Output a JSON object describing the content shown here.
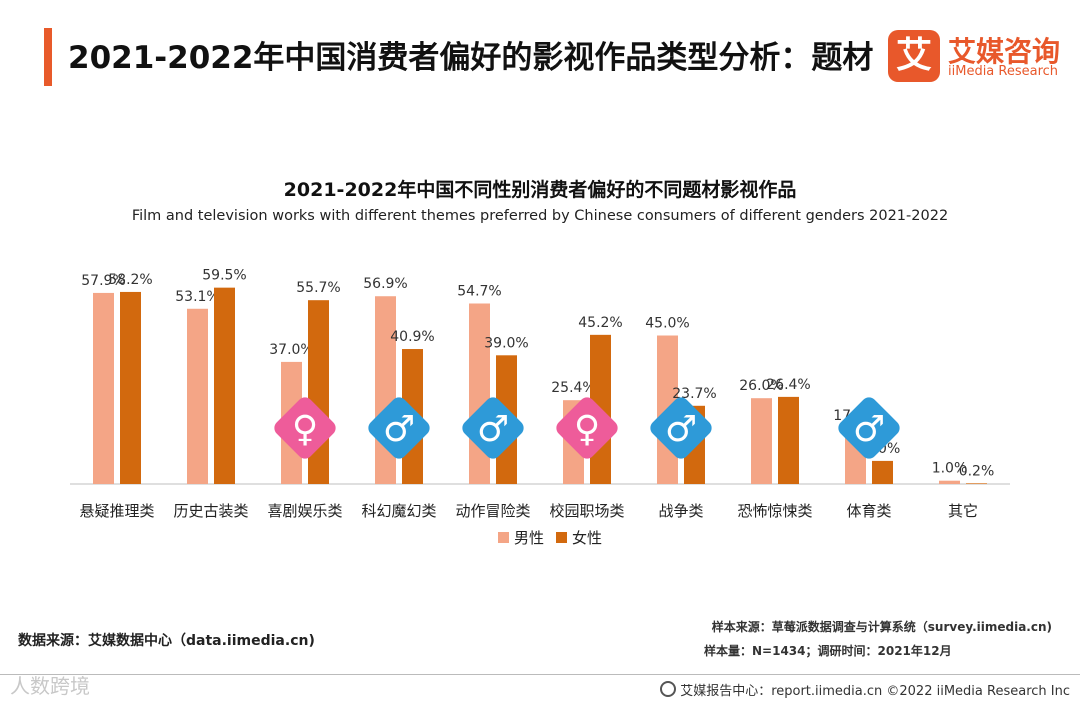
{
  "header": {
    "title": "2021-2022年中国消费者偏好的影视作品类型分析：题材",
    "accent_color": "#e85a2a"
  },
  "logo": {
    "mark": "艾",
    "name_cn": "艾媒咨询",
    "name_en": "iiMedia Research",
    "color": "#e8582b"
  },
  "chart_data": {
    "type": "bar",
    "title": "2021-2022年中国不同性别消费者偏好的不同题材影视作品",
    "subtitle": "Film and television works with different themes preferred by Chinese consumers of different genders 2021-2022",
    "categories": [
      "悬疑推理类",
      "历史古装类",
      "喜剧娱乐类",
      "科幻魔幻类",
      "动作冒险类",
      "校园职场类",
      "战争类",
      "恐怖惊悚类",
      "体育类",
      "其它"
    ],
    "series": [
      {
        "name": "男性",
        "color": "#f4a586",
        "values": [
          57.9,
          53.1,
          37.0,
          56.9,
          54.7,
          25.4,
          45.0,
          26.0,
          17.0,
          1.0
        ],
        "labels": [
          "57.9%",
          "53.1%",
          "37.0%",
          "56.9%",
          "54.7%",
          "25.4%",
          "45.0%",
          "26.0%",
          "17.0%",
          "1.0%"
        ]
      },
      {
        "name": "女性",
        "color": "#d2690e",
        "values": [
          58.2,
          59.5,
          55.7,
          40.9,
          39.0,
          45.2,
          23.7,
          26.4,
          7.0,
          0.2
        ],
        "labels": [
          "58.2%",
          "59.5%",
          "55.7%",
          "40.9%",
          "39.0%",
          "45.2%",
          "23.7%",
          "26.4%",
          "7.0%",
          "0.2%"
        ]
      }
    ],
    "gender_icons": [
      {
        "category_index": 2,
        "gender": "female",
        "color": "#ee5c9a",
        "symbol": "♀"
      },
      {
        "category_index": 3,
        "gender": "male",
        "color": "#2e9ad8",
        "symbol": "♂"
      },
      {
        "category_index": 4,
        "gender": "male",
        "color": "#2e9ad8",
        "symbol": "♂"
      },
      {
        "category_index": 5,
        "gender": "female",
        "color": "#ee5c9a",
        "symbol": "♀"
      },
      {
        "category_index": 6,
        "gender": "male",
        "color": "#2e9ad8",
        "symbol": "♂"
      },
      {
        "category_index": 8,
        "gender": "male",
        "color": "#2e9ad8",
        "symbol": "♂"
      }
    ],
    "ylim": [
      0,
      70
    ],
    "legend_position": "bottom-center"
  },
  "footer": {
    "source": "数据来源：艾媒数据中心（data.iimedia.cn)",
    "sample_source": "样本来源：草莓派数据调查与计算系统（survey.iimedia.cn)",
    "sample_info": "样本量：N=1434；调研时间：2021年12月",
    "report_center": "艾媒报告中心：report.iimedia.cn   ©2022  iiMedia Research  Inc",
    "watermark": "人数跨境"
  }
}
